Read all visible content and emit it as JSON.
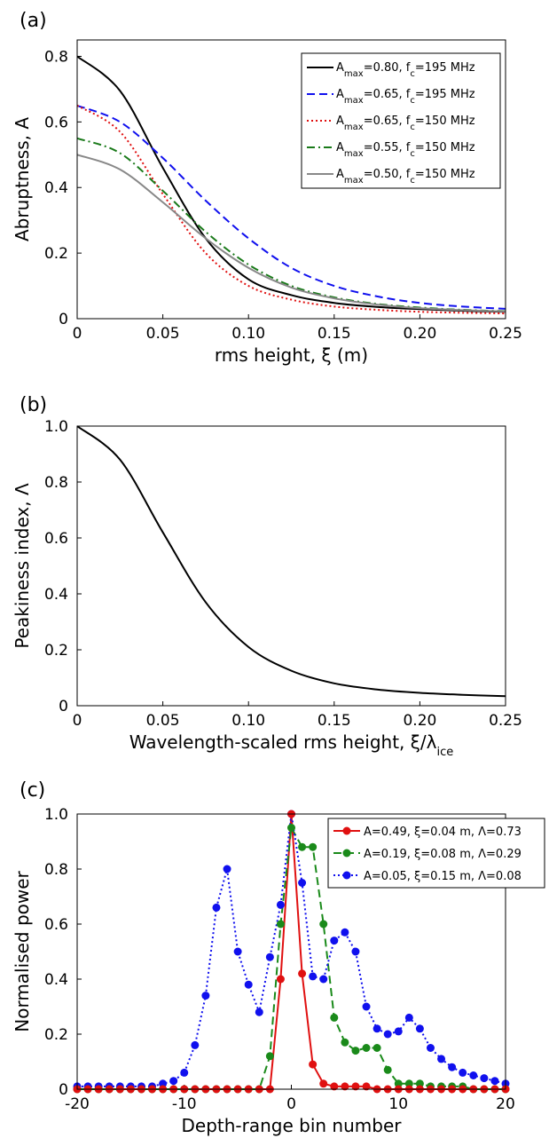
{
  "chart_data": [
    {
      "type": "line",
      "panel_label": "(a)",
      "xlabel": "rms height, ξ (m)",
      "ylabel": "Abruptness, A",
      "xlim": [
        0,
        0.25
      ],
      "ylim": [
        0,
        0.85
      ],
      "xticks": [
        "0",
        "0.05",
        "0.10",
        "0.15",
        "0.20",
        "0.25"
      ],
      "yticks": [
        "0",
        "0.2",
        "0.4",
        "0.6",
        "0.8"
      ],
      "legend_position": "top-right",
      "series": [
        {
          "name": "A_max=0.80, f_c=195 MHz",
          "legend": {
            "pre": "A",
            "sub": "max",
            "mid": "=0.80, f",
            "sub2": "c",
            "post": "=195 MHz"
          },
          "color": "#000000",
          "dash": "solid",
          "Amax": 0.8,
          "fc_MHz": 195,
          "x": [
            0,
            0.025,
            0.05,
            0.075,
            0.1,
            0.125,
            0.15,
            0.175,
            0.2,
            0.225,
            0.25
          ],
          "y": [
            0.8,
            0.695,
            0.46,
            0.245,
            0.12,
            0.072,
            0.048,
            0.036,
            0.029,
            0.024,
            0.021
          ]
        },
        {
          "name": "A_max=0.65, f_c=195 MHz",
          "legend": {
            "pre": "A",
            "sub": "max",
            "mid": "=0.65, f",
            "sub2": "c",
            "post": "=195 MHz"
          },
          "color": "#1010ee",
          "dash": "dashed",
          "Amax": 0.65,
          "fc_MHz": 195,
          "x": [
            0,
            0.025,
            0.05,
            0.075,
            0.1,
            0.125,
            0.15,
            0.175,
            0.2,
            0.225,
            0.25
          ],
          "y": [
            0.65,
            0.6,
            0.49,
            0.36,
            0.245,
            0.155,
            0.1,
            0.068,
            0.048,
            0.037,
            0.03
          ]
        },
        {
          "name": "A_max=0.65, f_c=150 MHz",
          "legend": {
            "pre": "A",
            "sub": "max",
            "mid": "=0.65, f",
            "sub2": "c",
            "post": "=150 MHz"
          },
          "color": "#e01010",
          "dash": "dotted",
          "Amax": 0.65,
          "fc_MHz": 150,
          "x": [
            0,
            0.025,
            0.05,
            0.075,
            0.1,
            0.125,
            0.15,
            0.175,
            0.2,
            0.225,
            0.25
          ],
          "y": [
            0.65,
            0.57,
            0.38,
            0.2,
            0.1,
            0.058,
            0.037,
            0.027,
            0.021,
            0.018,
            0.016
          ]
        },
        {
          "name": "A_max=0.55, f_c=150 MHz",
          "legend": {
            "pre": "A",
            "sub": "max",
            "mid": "=0.55, f",
            "sub2": "c",
            "post": "=150 MHz"
          },
          "color": "#1a7a1a",
          "dash": "dashdot",
          "Amax": 0.55,
          "fc_MHz": 150,
          "x": [
            0,
            0.025,
            0.05,
            0.075,
            0.1,
            0.125,
            0.15,
            0.175,
            0.2,
            0.225,
            0.25
          ],
          "y": [
            0.55,
            0.505,
            0.39,
            0.265,
            0.165,
            0.1,
            0.065,
            0.045,
            0.034,
            0.027,
            0.023
          ]
        },
        {
          "name": "A_max=0.50, f_c=150 MHz",
          "legend": {
            "pre": "A",
            "sub": "max",
            "mid": "=0.50, f",
            "sub2": "c",
            "post": "=150 MHz"
          },
          "color": "#888888",
          "dash": "solid",
          "Amax": 0.5,
          "fc_MHz": 150,
          "x": [
            0,
            0.025,
            0.05,
            0.075,
            0.1,
            0.125,
            0.15,
            0.175,
            0.2,
            0.225,
            0.25
          ],
          "y": [
            0.5,
            0.455,
            0.355,
            0.245,
            0.155,
            0.095,
            0.062,
            0.043,
            0.032,
            0.026,
            0.022
          ]
        }
      ]
    },
    {
      "type": "line",
      "panel_label": "(b)",
      "xlabel": "Wavelength-scaled rms height, ξ/λ",
      "xlabel_sub": "ice",
      "ylabel": "Peakiness index, Λ",
      "xlim": [
        0,
        0.25
      ],
      "ylim": [
        0,
        1.0
      ],
      "xticks": [
        "0",
        "0.05",
        "0.10",
        "0.15",
        "0.20",
        "0.25"
      ],
      "yticks": [
        "0",
        "0.2",
        "0.4",
        "0.6",
        "0.8",
        "1.0"
      ],
      "series": [
        {
          "name": "",
          "color": "#000000",
          "dash": "solid",
          "x": [
            0,
            0.025,
            0.05,
            0.075,
            0.1,
            0.125,
            0.15,
            0.175,
            0.2,
            0.225,
            0.25
          ],
          "y": [
            1.0,
            0.88,
            0.62,
            0.37,
            0.21,
            0.125,
            0.08,
            0.058,
            0.046,
            0.039,
            0.034
          ]
        }
      ]
    },
    {
      "type": "line",
      "panel_label": "(c)",
      "xlabel": "Depth-range bin number",
      "ylabel": "Normalised power",
      "xlim": [
        -20,
        20
      ],
      "ylim": [
        0,
        1.0
      ],
      "xticks": [
        "-20",
        "-10",
        "0",
        "10",
        "20"
      ],
      "yticks": [
        "0",
        "0.2",
        "0.4",
        "0.6",
        "0.8",
        "1.0"
      ],
      "legend_position": "top-right",
      "series": [
        {
          "name": "A=0.49, ξ=0.04 m, Λ=0.73",
          "color": "#e01010",
          "dash": "solid",
          "x": [
            -20,
            -19,
            -18,
            -17,
            -16,
            -15,
            -14,
            -13,
            -12,
            -11,
            -10,
            -9,
            -8,
            -7,
            -6,
            -5,
            -4,
            -3,
            -2,
            -1,
            0,
            1,
            2,
            3,
            4,
            5,
            6,
            7,
            8,
            9,
            10,
            11,
            12,
            13,
            14,
            15,
            16,
            17,
            18,
            19,
            20
          ],
          "y": [
            0,
            0,
            0,
            0,
            0,
            0,
            0,
            0,
            0,
            0,
            0,
            0,
            0,
            0,
            0,
            0,
            0,
            0,
            0,
            0.4,
            1.0,
            0.42,
            0.09,
            0.02,
            0.01,
            0.01,
            0.01,
            0.01,
            0,
            0,
            0,
            0,
            0,
            0,
            0,
            0,
            0,
            0,
            0,
            0,
            0
          ]
        },
        {
          "name": "A=0.19, ξ=0.08 m, Λ=0.29",
          "color": "#1a8a1a",
          "dash": "dashed",
          "x": [
            -20,
            -19,
            -18,
            -17,
            -16,
            -15,
            -14,
            -13,
            -12,
            -11,
            -10,
            -9,
            -8,
            -7,
            -6,
            -5,
            -4,
            -3,
            -2,
            -1,
            0,
            1,
            2,
            3,
            4,
            5,
            6,
            7,
            8,
            9,
            10,
            11,
            12,
            13,
            14,
            15,
            16,
            17,
            18,
            19,
            20
          ],
          "y": [
            0,
            0,
            0,
            0,
            0,
            0,
            0,
            0,
            0,
            0,
            0,
            0,
            0,
            0,
            0,
            0,
            0,
            0,
            0.12,
            0.6,
            0.95,
            0.88,
            0.88,
            0.6,
            0.26,
            0.17,
            0.14,
            0.15,
            0.15,
            0.07,
            0.02,
            0.02,
            0.02,
            0.01,
            0.01,
            0.01,
            0.01,
            0,
            0,
            0,
            0
          ]
        },
        {
          "name": "A=0.05, ξ=0.15 m, Λ=0.08",
          "color": "#1010ee",
          "dash": "dotted",
          "x": [
            -20,
            -19,
            -18,
            -17,
            -16,
            -15,
            -14,
            -13,
            -12,
            -11,
            -10,
            -9,
            -8,
            -7,
            -6,
            -5,
            -4,
            -3,
            -2,
            -1,
            0,
            1,
            2,
            3,
            4,
            5,
            6,
            7,
            8,
            9,
            10,
            11,
            12,
            13,
            14,
            15,
            16,
            17,
            18,
            19,
            20
          ],
          "y": [
            0.01,
            0.01,
            0.01,
            0.01,
            0.01,
            0.01,
            0.01,
            0.01,
            0.02,
            0.03,
            0.06,
            0.16,
            0.34,
            0.66,
            0.8,
            0.5,
            0.38,
            0.28,
            0.48,
            0.67,
            1.0,
            0.75,
            0.41,
            0.4,
            0.54,
            0.57,
            0.5,
            0.3,
            0.22,
            0.2,
            0.21,
            0.26,
            0.22,
            0.15,
            0.11,
            0.08,
            0.06,
            0.05,
            0.04,
            0.03,
            0.02
          ]
        }
      ]
    }
  ]
}
